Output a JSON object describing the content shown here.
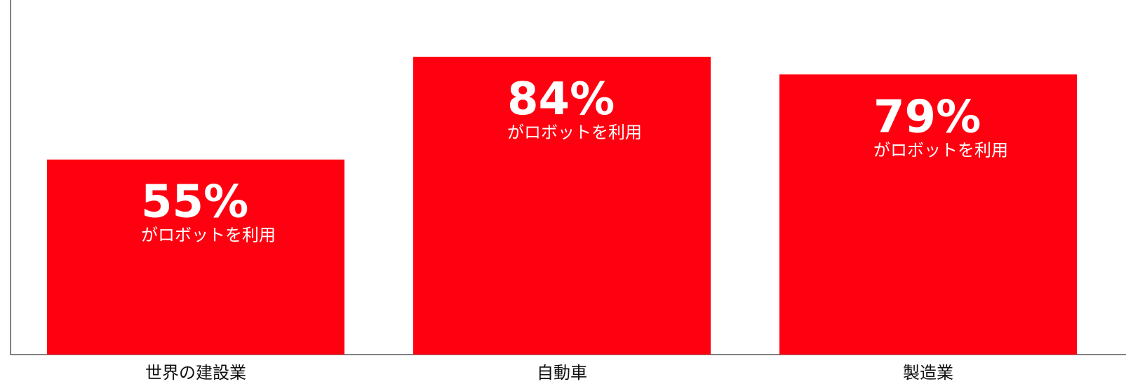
{
  "chart_data": {
    "type": "bar",
    "categories": [
      "世界の建設業",
      "自動車",
      "製造業"
    ],
    "values": [
      55,
      84,
      79
    ],
    "value_labels": [
      "55%",
      "84%",
      "79%"
    ],
    "bar_caption": "がロボットを利用",
    "unit": "%",
    "ylim": [
      0,
      100
    ],
    "bar_color": "#ff0011",
    "grid": false,
    "legend": "none",
    "title": "",
    "xlabel": "",
    "ylabel": ""
  }
}
